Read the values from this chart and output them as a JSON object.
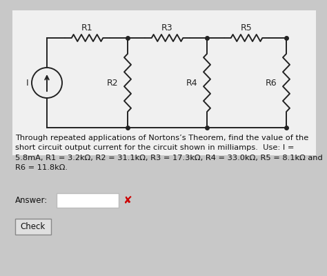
{
  "bg_color": "#c8c8c8",
  "circuit_area_color": "#f0f0f0",
  "text_color": "#111111",
  "line_color": "#222222",
  "answer_box_color": "#ffffff",
  "answer_box_border": "#bbbbbb",
  "x_color": "#cc0000",
  "check_bg": "#e0e0e0",
  "check_border": "#888888",
  "answer_label": "Answer:",
  "check_label": "Check",
  "body_text": "Through repeated applications of Nortons’s Theorem, find the value of the\nshort circuit output current for the circuit shown in milliamps.  Use: I =\n5.8mA, R1 = 3.2kΩ, R2 = 31.1kΩ, R3 = 17.3kΩ, R4 = 33.0kΩ, R5 = 8.1kΩ and\nR6 = 11.8kΩ."
}
